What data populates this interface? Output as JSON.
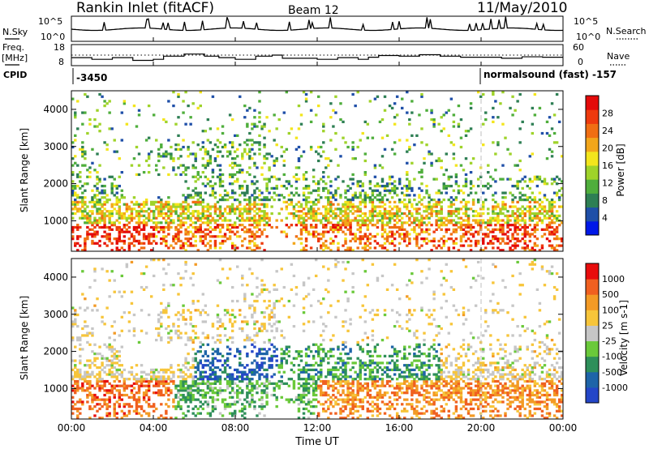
{
  "header": {
    "station": "Rankin Inlet (fitACF)",
    "beam": "Beam 12",
    "date": "11/May/2010"
  },
  "aux_labels": {
    "nsky": "N.Sky",
    "nsearch": "N.Search",
    "freq": "Freq.",
    "mhz": "[MHz]",
    "nave": "Nave",
    "cpid": "CPID",
    "cpid_value_1": "-3450",
    "cpid_value_2": "normalsound (fast) -157"
  },
  "chart_data": [
    {
      "type": "line",
      "panel": "noise",
      "y_left_ticks": [
        "10^5",
        "10^0"
      ],
      "y_right_ticks": [
        "10^5",
        "10^0"
      ],
      "series": [
        {
          "name": "N.Sky"
        },
        {
          "name": "N.Search"
        }
      ]
    },
    {
      "type": "line",
      "panel": "frequency / nave",
      "y_left_ticks": [
        "18",
        "8"
      ],
      "y_right_ticks": [
        "60",
        "0"
      ],
      "x_hours": [
        0,
        1,
        2,
        3,
        4,
        4.5,
        5.5,
        6.5,
        7.2,
        8,
        9,
        9.8,
        10.3,
        12,
        13,
        14,
        14.5,
        15,
        16,
        17,
        18,
        19,
        20,
        21,
        22,
        23,
        24
      ],
      "freq_mhz": [
        11.8,
        11.0,
        11.8,
        10.5,
        11.0,
        12.5,
        13.5,
        12.5,
        11.8,
        11.0,
        12.5,
        13.0,
        11.5,
        11.0,
        11.8,
        11.0,
        12.0,
        12.8,
        12.5,
        13.2,
        12.5,
        12.0,
        12.0,
        11.5,
        12.2,
        12.0,
        12.0
      ]
    },
    {
      "type": "heatmap",
      "panel": "power",
      "ylabel": "Slant Range [km]",
      "yticks": [
        1000,
        2000,
        3000,
        4000
      ],
      "ylim": [
        180,
        4500
      ],
      "colorbar_label": "Power [dB]",
      "colorbar_ticks": [
        4,
        8,
        12,
        16,
        20,
        24,
        28
      ],
      "colorbar_range": [
        0,
        32
      ]
    },
    {
      "type": "heatmap",
      "panel": "velocity",
      "ylabel": "Slant Range [km]",
      "yticks": [
        1000,
        2000,
        3000,
        4000
      ],
      "ylim": [
        180,
        4500
      ],
      "colorbar_label": "Velocity [m s-1]",
      "colorbar_ticks": [
        "1000",
        "500",
        "100",
        "25",
        "-25",
        "-100",
        "-500",
        "-1000"
      ],
      "xlabel": "Time UT",
      "xticks": [
        "00:00",
        "04:00",
        "08:00",
        "12:00",
        "16:00",
        "20:00",
        "00:00"
      ],
      "xlim_hours": [
        0,
        24
      ]
    }
  ],
  "colors": {
    "power_scale": [
      "#0018e8",
      "#1f4fa8",
      "#2e7f54",
      "#4fae3c",
      "#9fd32a",
      "#f3e51c",
      "#f2a61b",
      "#f06e13",
      "#ee3a0e",
      "#e40a0a"
    ],
    "velocity_scale": [
      "#e80c0c",
      "#f06020",
      "#f39a25",
      "#f7c53a",
      "#c6c6c6",
      "#6ac93a",
      "#2e8f5a",
      "#1e64a8",
      "#2446c8"
    ],
    "gray_gridline": "#bfbfbf"
  }
}
